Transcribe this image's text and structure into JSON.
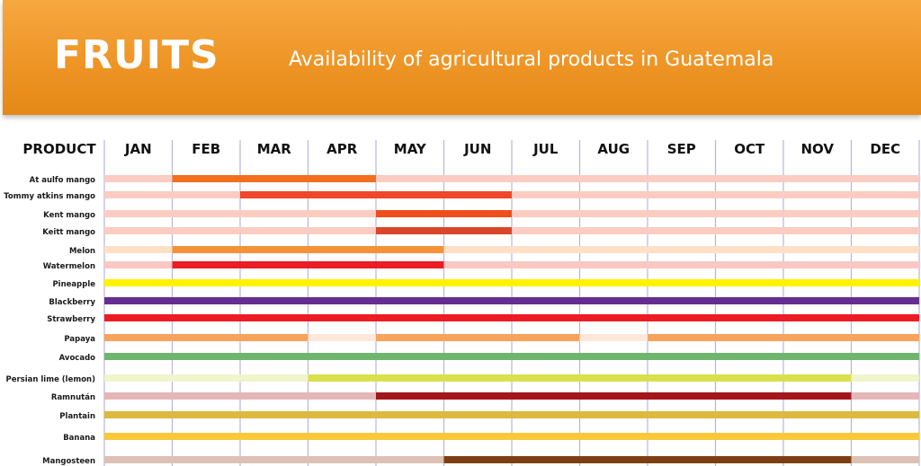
{
  "header": {
    "title": "FRUITS",
    "subtitle": "Availability of agricultural products in Guatemala",
    "background_color": "#ef9628"
  },
  "chart_data": {
    "type": "bar",
    "subtype": "gantt",
    "column_header": "PRODUCT",
    "months": [
      "JAN",
      "FEB",
      "MAR",
      "APR",
      "MAY",
      "JUN",
      "JUL",
      "AUG",
      "SEP",
      "OCT",
      "NOV",
      "DEC"
    ],
    "rows": [
      {
        "product": "At aulfo mango",
        "color": "#f26f1f",
        "bg": "#fcccc2",
        "segments": [
          [
            2,
            4
          ]
        ]
      },
      {
        "product": "Tommy atkins mango",
        "color": "#f0462a",
        "bg": "#fcccc2",
        "segments": [
          [
            3,
            6
          ]
        ]
      },
      {
        "product": "Kent mango",
        "color": "#ef4e1a",
        "bg": "#fcccc2",
        "segments": [
          [
            5,
            6
          ]
        ]
      },
      {
        "product": "Keitt mango",
        "color": "#d9462b",
        "bg": "#fcccc2",
        "segments": [
          [
            5,
            6
          ]
        ]
      },
      {
        "product": "Melon",
        "color": "#f59137",
        "bg": "#fde0c5",
        "segments": [
          [
            2,
            5
          ]
        ]
      },
      {
        "product": "Watermelon",
        "color": "#ec1c24",
        "bg": "#fbc7c3",
        "segments": [
          [
            2,
            5
          ]
        ]
      },
      {
        "product": "Pineapple",
        "color": "#fff200",
        "bg": "",
        "segments": [
          [
            1,
            12
          ]
        ]
      },
      {
        "product": "Blackberry",
        "color": "#662d91",
        "bg": "",
        "segments": [
          [
            1,
            12
          ]
        ]
      },
      {
        "product": "Strawberry",
        "color": "#ed1c24",
        "bg": "",
        "segments": [
          [
            1,
            12
          ]
        ]
      },
      {
        "product": "Papaya",
        "color": "#f7a35c",
        "bg": "#fde7da",
        "segments": [
          [
            1,
            3
          ],
          [
            5,
            7
          ],
          [
            9,
            12
          ]
        ]
      },
      {
        "product": "Avocado",
        "color": "#6fb56f",
        "bg": "",
        "segments": [
          [
            1,
            12
          ]
        ]
      },
      {
        "product": "Persian lime (lemon)",
        "color": "#d9e04a",
        "bg": "#f1f5cc",
        "segments": [
          [
            4,
            11
          ]
        ]
      },
      {
        "product": "Ramnután",
        "color": "#a3161b",
        "bg": "#e3b7b8",
        "segments": [
          [
            5,
            11
          ]
        ]
      },
      {
        "product": "Plantain",
        "color": "#dcb93f",
        "bg": "",
        "segments": [
          [
            1,
            12
          ]
        ]
      },
      {
        "product": "Banana",
        "color": "#f9c93a",
        "bg": "",
        "segments": [
          [
            1,
            12
          ]
        ]
      },
      {
        "product": "Mangosteen",
        "color": "#7d3f12",
        "bg": "#dcc1b4",
        "segments": [
          [
            6,
            11
          ]
        ]
      }
    ],
    "grid": true,
    "legend": "none"
  }
}
